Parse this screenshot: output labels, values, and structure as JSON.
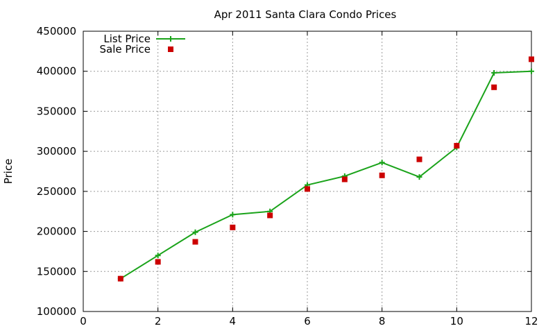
{
  "chart_data": {
    "type": "line",
    "title": "Apr 2011 Santa Clara Condo Prices",
    "xlabel": "",
    "ylabel": "Price",
    "xlim": [
      0,
      12
    ],
    "ylim": [
      100000,
      450000
    ],
    "xticks": [
      0,
      2,
      4,
      6,
      8,
      10,
      12
    ],
    "yticks": [
      100000,
      150000,
      200000,
      250000,
      300000,
      350000,
      400000,
      450000
    ],
    "grid": true,
    "legend_position": "top-left",
    "series": [
      {
        "name": "List Price",
        "style": "line-with-plus-markers",
        "color": "#1aa31a",
        "x": [
          1,
          2,
          3,
          4,
          5,
          6,
          7,
          8,
          9,
          10,
          11,
          12
        ],
        "values": [
          141000,
          170000,
          199000,
          221000,
          225000,
          258000,
          269000,
          286000,
          268000,
          305000,
          398000,
          400000
        ]
      },
      {
        "name": "Sale Price",
        "style": "square-points",
        "color": "#cc0000",
        "x": [
          1,
          2,
          3,
          4,
          5,
          6,
          7,
          8,
          9,
          10,
          11,
          12
        ],
        "values": [
          141000,
          162000,
          187000,
          205000,
          220000,
          253000,
          265000,
          270000,
          290000,
          307000,
          380000,
          415000
        ]
      }
    ]
  }
}
